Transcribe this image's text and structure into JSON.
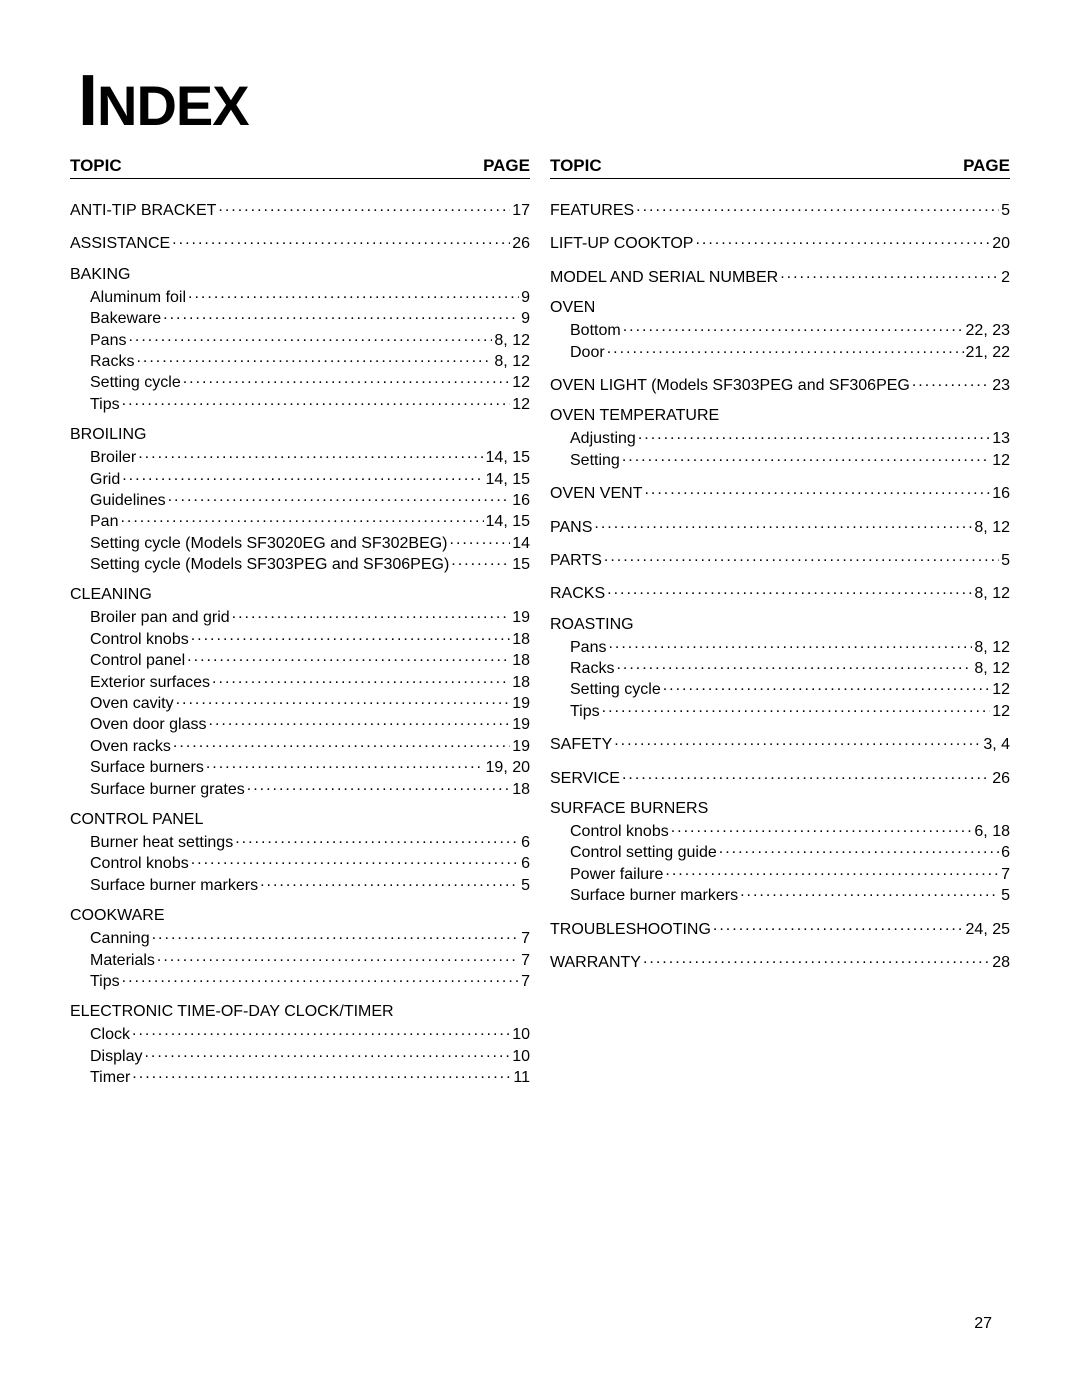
{
  "title_html": "<span class='cap'>I</span>NDEX",
  "header": {
    "topic": "TOPIC",
    "page": "PAGE"
  },
  "footer_page": "27",
  "colors": {
    "background": "#ffffff",
    "text": "#000000",
    "rule": "#000000"
  },
  "typography": {
    "body_font": "Arial",
    "title_font": "Arial Narrow",
    "body_size_pt": 12,
    "title_size_pt": 42
  },
  "columns": [
    {
      "sections": [
        {
          "entries": [
            {
              "label": "ANTI-TIP BRACKET",
              "page": "17"
            }
          ]
        },
        {
          "entries": [
            {
              "label": "ASSISTANCE",
              "page": "26"
            }
          ]
        },
        {
          "title": "BAKING",
          "entries": [
            {
              "label": "Aluminum foil",
              "page": "9"
            },
            {
              "label": "Bakeware",
              "page": "9"
            },
            {
              "label": "Pans",
              "page": "8, 12"
            },
            {
              "label": "Racks",
              "page": "8, 12"
            },
            {
              "label": "Setting cycle",
              "page": "12"
            },
            {
              "label": "Tips",
              "page": "12"
            }
          ]
        },
        {
          "title": "BROILING",
          "entries": [
            {
              "label": "Broiler",
              "page": "14, 15"
            },
            {
              "label": "Grid",
              "page": "14, 15"
            },
            {
              "label": "Guidelines",
              "page": "16"
            },
            {
              "label": "Pan",
              "page": "14, 15"
            },
            {
              "label": "Setting cycle (Models SF3020EG and SF302BEG)",
              "page": "14",
              "tight": true
            },
            {
              "label": "Setting cycle (Models SF303PEG and SF306PEG)",
              "page": "15",
              "tight": true
            }
          ]
        },
        {
          "title": "CLEANING",
          "entries": [
            {
              "label": "Broiler pan and grid",
              "page": "19"
            },
            {
              "label": "Control knobs",
              "page": "18"
            },
            {
              "label": "Control panel",
              "page": "18"
            },
            {
              "label": "Exterior surfaces",
              "page": "18"
            },
            {
              "label": "Oven cavity",
              "page": "19"
            },
            {
              "label": "Oven door glass",
              "page": "19"
            },
            {
              "label": "Oven racks",
              "page": "19"
            },
            {
              "label": "Surface burners",
              "page": "19, 20"
            },
            {
              "label": "Surface burner grates",
              "page": "18"
            }
          ]
        },
        {
          "title": "CONTROL PANEL",
          "entries": [
            {
              "label": "Burner heat settings",
              "page": "6"
            },
            {
              "label": "Control knobs",
              "page": "6"
            },
            {
              "label": "Surface burner markers",
              "page": "5"
            }
          ]
        },
        {
          "title": "COOKWARE",
          "entries": [
            {
              "label": "Canning",
              "page": "7"
            },
            {
              "label": "Materials",
              "page": "7"
            },
            {
              "label": "Tips",
              "page": "7"
            }
          ]
        },
        {
          "title": "ELECTRONIC TIME-OF-DAY CLOCK/TIMER",
          "entries": [
            {
              "label": "Clock",
              "page": "10"
            },
            {
              "label": "Display",
              "page": "10"
            },
            {
              "label": "Timer",
              "page": "11"
            }
          ]
        }
      ]
    },
    {
      "sections": [
        {
          "entries": [
            {
              "label": "FEATURES",
              "page": "5"
            }
          ]
        },
        {
          "entries": [
            {
              "label": "LIFT-UP COOKTOP",
              "page": "20"
            }
          ]
        },
        {
          "entries": [
            {
              "label": "MODEL AND SERIAL NUMBER",
              "page": "2"
            }
          ]
        },
        {
          "title": "OVEN",
          "entries": [
            {
              "label": "Bottom",
              "page": "22, 23"
            },
            {
              "label": "Door",
              "page": "21, 22"
            }
          ]
        },
        {
          "entries": [
            {
              "label": "OVEN LIGHT (Models SF303PEG and SF306PEG",
              "page": "23",
              "tight": true
            }
          ]
        },
        {
          "title": "OVEN TEMPERATURE",
          "entries": [
            {
              "label": "Adjusting",
              "page": "13"
            },
            {
              "label": "Setting",
              "page": "12"
            }
          ]
        },
        {
          "entries": [
            {
              "label": "OVEN VENT",
              "page": "16"
            }
          ]
        },
        {
          "entries": [
            {
              "label": "PANS",
              "page": "8, 12"
            }
          ]
        },
        {
          "entries": [
            {
              "label": "PARTS",
              "page": "5"
            }
          ]
        },
        {
          "entries": [
            {
              "label": "RACKS",
              "page": "8, 12"
            }
          ]
        },
        {
          "title": "ROASTING",
          "entries": [
            {
              "label": "Pans",
              "page": "8, 12"
            },
            {
              "label": "Racks",
              "page": "8, 12"
            },
            {
              "label": "Setting cycle",
              "page": "12"
            },
            {
              "label": "Tips",
              "page": "12"
            }
          ]
        },
        {
          "entries": [
            {
              "label": "SAFETY",
              "page": "3, 4"
            }
          ]
        },
        {
          "entries": [
            {
              "label": "SERVICE",
              "page": "26"
            }
          ]
        },
        {
          "title": "SURFACE BURNERS",
          "entries": [
            {
              "label": "Control knobs",
              "page": "6, 18"
            },
            {
              "label": "Control setting guide",
              "page": "6"
            },
            {
              "label": "Power failure",
              "page": "7"
            },
            {
              "label": "Surface burner markers",
              "page": "5"
            }
          ]
        },
        {
          "entries": [
            {
              "label": "TROUBLESHOOTING",
              "page": "24, 25"
            }
          ]
        },
        {
          "entries": [
            {
              "label": "WARRANTY",
              "page": "28"
            }
          ]
        }
      ]
    }
  ]
}
